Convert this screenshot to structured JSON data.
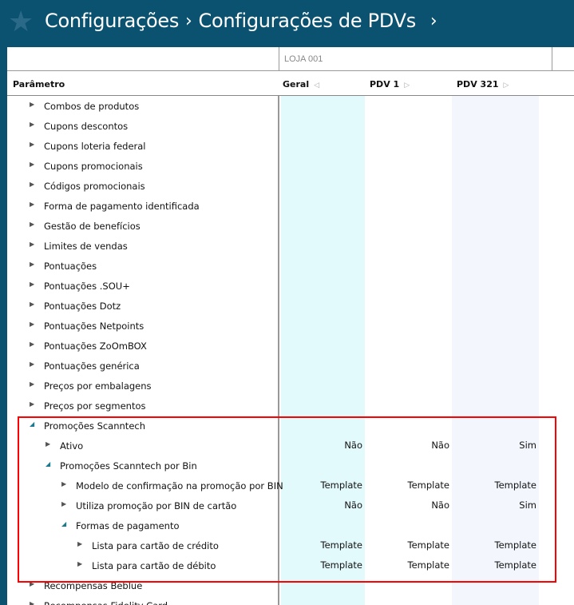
{
  "header": {
    "breadcrumb": [
      "Configurações",
      "Configurações de PDVs"
    ],
    "icon": "star-icon"
  },
  "store": "LOJA 001",
  "columns": {
    "param": "Parâmetro",
    "geral": "Geral",
    "pdv1": "PDV 1",
    "pdv321": "PDV 321"
  },
  "colors": {
    "header": "#0b5270",
    "geral_bg": "#e3fafc",
    "pdv321_bg": "#f3f7fd",
    "highlight": "#ff0000"
  },
  "rows": [
    {
      "label": "Combos de produtos",
      "level": 0,
      "open": false
    },
    {
      "label": "Cupons descontos",
      "level": 0,
      "open": false
    },
    {
      "label": "Cupons loteria federal",
      "level": 0,
      "open": false
    },
    {
      "label": "Cupons promocionais",
      "level": 0,
      "open": false
    },
    {
      "label": "Códigos promocionais",
      "level": 0,
      "open": false
    },
    {
      "label": "Forma de pagamento identificada",
      "level": 0,
      "open": false
    },
    {
      "label": "Gestão de benefícios",
      "level": 0,
      "open": false
    },
    {
      "label": "Limites de vendas",
      "level": 0,
      "open": false
    },
    {
      "label": "Pontuações",
      "level": 0,
      "open": false
    },
    {
      "label": "Pontuações .SOU+",
      "level": 0,
      "open": false
    },
    {
      "label": "Pontuações Dotz",
      "level": 0,
      "open": false
    },
    {
      "label": "Pontuações Netpoints",
      "level": 0,
      "open": false
    },
    {
      "label": "Pontuações ZoOmBOX",
      "level": 0,
      "open": false
    },
    {
      "label": "Pontuações genérica",
      "level": 0,
      "open": false
    },
    {
      "label": "Preços por embalagens",
      "level": 0,
      "open": false
    },
    {
      "label": "Preços por segmentos",
      "level": 0,
      "open": false
    },
    {
      "label": "Promoções Scanntech",
      "level": 0,
      "open": true
    },
    {
      "label": "Ativo",
      "level": 1,
      "open": false,
      "values": [
        "Não",
        "Não",
        "Sim"
      ]
    },
    {
      "label": "Promoções Scanntech por Bin",
      "level": 1,
      "open": true
    },
    {
      "label": "Modelo de confirmação na promoção por BIN",
      "level": 2,
      "open": false,
      "values": [
        "Template",
        "Template",
        "Template"
      ]
    },
    {
      "label": "Utiliza promoção por BIN de cartão",
      "level": 2,
      "open": false,
      "values": [
        "Não",
        "Não",
        "Sim"
      ]
    },
    {
      "label": "Formas de pagamento",
      "level": 2,
      "open": true
    },
    {
      "label": "Lista para cartão de crédito",
      "level": 3,
      "open": false,
      "values": [
        "Template",
        "Template",
        "Template"
      ]
    },
    {
      "label": "Lista para cartão de débito",
      "level": 3,
      "open": false,
      "values": [
        "Template",
        "Template",
        "Template"
      ]
    },
    {
      "label": "Recompensas Beblue",
      "level": 0,
      "open": false
    },
    {
      "label": "Recompensas Fidelity Card",
      "level": 0,
      "open": false
    }
  ]
}
